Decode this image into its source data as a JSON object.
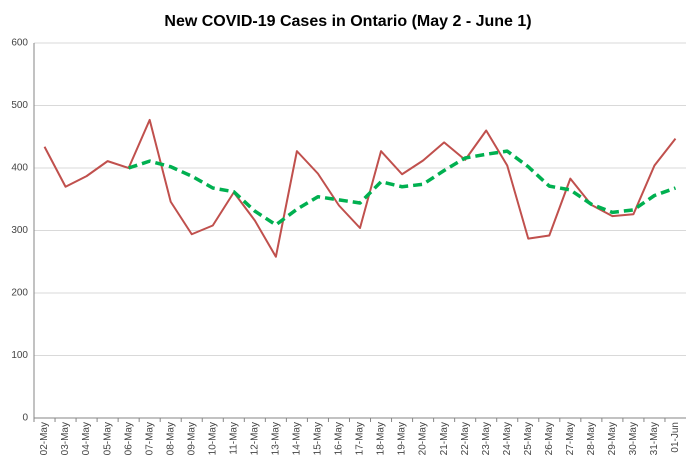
{
  "chart_data": {
    "type": "line",
    "title": "New COVID-19 Cases in Ontario (May 2 - June 1)",
    "categories": [
      "02-May",
      "03-May",
      "04-May",
      "05-May",
      "06-May",
      "07-May",
      "08-May",
      "09-May",
      "10-May",
      "11-May",
      "12-May",
      "13-May",
      "14-May",
      "15-May",
      "16-May",
      "17-May",
      "18-May",
      "19-May",
      "20-May",
      "21-May",
      "22-May",
      "23-May",
      "24-May",
      "25-May",
      "26-May",
      "27-May",
      "28-May",
      "29-May",
      "30-May",
      "31-May",
      "01-Jun"
    ],
    "series": [
      {
        "color": "#c0504d",
        "dashed": false,
        "values": [
          434,
          370,
          387,
          411,
          400,
          477,
          346,
          294,
          308,
          361,
          316,
          258,
          427,
          391,
          340,
          304,
          427,
          390,
          412,
          441,
          413,
          460,
          404,
          287,
          292,
          383,
          341,
          323,
          326,
          404,
          447
        ]
      },
      {
        "color": "#00b050",
        "dashed": true,
        "values": [
          null,
          null,
          null,
          null,
          400,
          411,
          402,
          387,
          368,
          362,
          331,
          309,
          334,
          354,
          349,
          344,
          378,
          370,
          374,
          396,
          416,
          422,
          427,
          402,
          371,
          365,
          342,
          329,
          333,
          356,
          368
        ]
      }
    ],
    "ylim": [
      0,
      600
    ],
    "yticks": [
      0,
      100,
      200,
      300,
      400,
      500,
      600
    ],
    "grid": true
  }
}
